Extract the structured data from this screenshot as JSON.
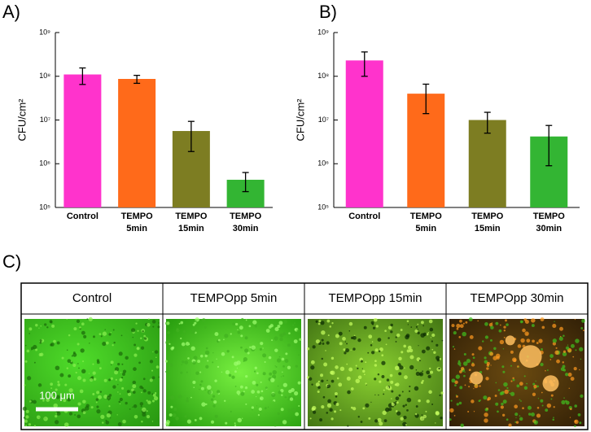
{
  "chart_data": [
    {
      "type": "bar",
      "panel_label": "A)",
      "y_label": "CFU/cm²",
      "categories": [
        "Control",
        "TEMPO 5min",
        "TEMPO 15min",
        "TEMPO 30min"
      ],
      "values": [
        110000000,
        87000000,
        5600000,
        430000
      ],
      "errors": [
        45000000,
        18000000,
        3700000,
        200000
      ],
      "colors": [
        "#ff33cc",
        "#ff6a1a",
        "#7d7d22",
        "#33b533"
      ],
      "log_scale": true,
      "ylim": [
        100000,
        1000000000
      ],
      "yticks": [
        {
          "value": 100000,
          "label": "10⁵"
        },
        {
          "value": 1000000,
          "label": "10⁶"
        },
        {
          "value": 10000000,
          "label": "10⁷"
        },
        {
          "value": 100000000,
          "label": "10⁸"
        },
        {
          "value": 1000000000,
          "label": "10⁹"
        }
      ]
    },
    {
      "type": "bar",
      "panel_label": "B)",
      "y_label": "CFU/cm²",
      "categories": [
        "Control",
        "TEMPO 5min",
        "TEMPO 15min",
        "TEMPO 30min"
      ],
      "values": [
        230000000,
        40000000,
        10000000,
        4200000
      ],
      "errors": [
        130000000,
        26000000,
        5000000,
        3300000
      ],
      "colors": [
        "#ff33cc",
        "#ff6a1a",
        "#7d7d22",
        "#33b533"
      ],
      "log_scale": true,
      "ylim": [
        100000,
        1000000000
      ],
      "yticks": [
        {
          "value": 100000,
          "label": "10⁵"
        },
        {
          "value": 1000000,
          "label": "10⁶"
        },
        {
          "value": 10000000,
          "label": "10⁷"
        },
        {
          "value": 100000000,
          "label": "10⁸"
        },
        {
          "value": 1000000000,
          "label": "10⁹"
        }
      ]
    }
  ],
  "panel_c": {
    "panel_label": "C)",
    "columns": [
      "Control",
      "TEMPOpp 5min",
      "TEMPOpp 15min",
      "TEMPOpp 30min"
    ],
    "scale_bar": "100 μm"
  }
}
